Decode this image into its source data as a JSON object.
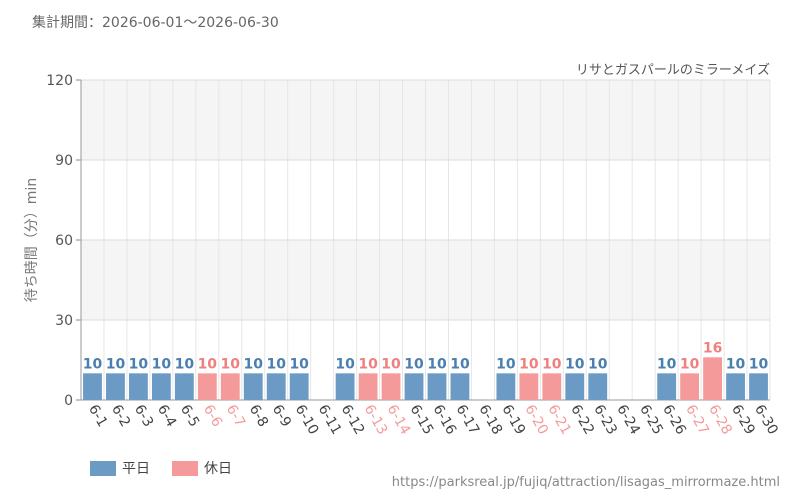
{
  "header": {
    "period": "集計期間：2026-06-01～2026-06-30"
  },
  "footer": {
    "source": "https://parksreal.jp/fujiq/attraction/lisagas_mirrormaze.html"
  },
  "legend": {
    "weekday_label": "平日",
    "holiday_label": "休日"
  },
  "colors": {
    "weekday": "#6b9ac4",
    "holiday": "#f59a9a",
    "weekday_text": "#4a7fb0",
    "holiday_text": "#f08080"
  },
  "chart_data": {
    "type": "bar",
    "title": "リサとガスパールのミラーメイズ",
    "ylabel": "待ち時間（分）min",
    "xlabel": "",
    "ylim": [
      0,
      120
    ],
    "yticks": [
      0,
      30,
      60,
      90,
      120
    ],
    "grid": true,
    "legend_position": "bottom-left",
    "categories": [
      "6-1",
      "6-2",
      "6-3",
      "6-4",
      "6-5",
      "6-6",
      "6-7",
      "6-8",
      "6-9",
      "6-10",
      "6-11",
      "6-12",
      "6-13",
      "6-14",
      "6-15",
      "6-16",
      "6-17",
      "6-18",
      "6-19",
      "6-20",
      "6-21",
      "6-22",
      "6-23",
      "6-24",
      "6-25",
      "6-26",
      "6-27",
      "6-28",
      "6-29",
      "6-30"
    ],
    "values": [
      10,
      10,
      10,
      10,
      10,
      10,
      10,
      10,
      10,
      10,
      null,
      10,
      10,
      10,
      10,
      10,
      10,
      null,
      10,
      10,
      10,
      10,
      10,
      null,
      null,
      10,
      10,
      16,
      10,
      10
    ],
    "day_type": [
      "平日",
      "平日",
      "平日",
      "平日",
      "平日",
      "休日",
      "休日",
      "平日",
      "平日",
      "平日",
      "平日",
      "平日",
      "休日",
      "休日",
      "平日",
      "平日",
      "平日",
      "平日",
      "平日",
      "休日",
      "休日",
      "平日",
      "平日",
      "平日",
      "平日",
      "平日",
      "休日",
      "休日",
      "平日",
      "平日"
    ]
  }
}
